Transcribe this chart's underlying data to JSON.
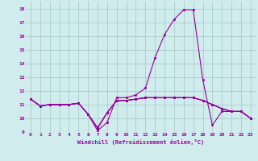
{
  "hours": [
    0,
    1,
    2,
    3,
    4,
    5,
    6,
    7,
    8,
    9,
    10,
    11,
    12,
    13,
    14,
    15,
    16,
    17,
    18,
    19,
    20,
    21,
    22,
    23
  ],
  "line1": [
    11.4,
    10.9,
    11.0,
    11.0,
    11.0,
    11.1,
    10.3,
    9.1,
    9.7,
    11.5,
    11.5,
    11.7,
    12.2,
    14.4,
    16.1,
    17.2,
    17.9,
    17.9,
    12.8,
    9.5,
    10.5,
    10.5,
    10.5,
    10.0
  ],
  "line2": [
    11.4,
    10.9,
    11.0,
    11.0,
    11.0,
    11.1,
    10.3,
    9.3,
    10.4,
    11.3,
    11.3,
    11.4,
    11.5,
    11.5,
    11.5,
    11.5,
    11.5,
    11.5,
    11.3,
    11.0,
    10.7,
    10.5,
    10.5,
    10.0
  ],
  "line3": [
    11.4,
    10.9,
    11.0,
    11.0,
    11.0,
    11.1,
    10.3,
    9.3,
    10.4,
    11.3,
    11.3,
    11.4,
    11.5,
    11.5,
    11.5,
    11.5,
    11.5,
    11.5,
    11.3,
    11.0,
    10.7,
    10.5,
    10.5,
    10.0
  ],
  "line4": [
    11.4,
    10.9,
    11.0,
    11.0,
    11.0,
    11.1,
    10.3,
    9.3,
    10.4,
    11.3,
    11.3,
    11.4,
    11.5,
    11.5,
    11.5,
    11.5,
    11.5,
    11.5,
    11.3,
    11.0,
    10.7,
    10.5,
    10.5,
    10.0
  ],
  "color": "#990099",
  "bg_color": "#d0ecec",
  "grid_color": "#aacccc",
  "xlabel": "Windchill (Refroidissement éolien,°C)",
  "ylim": [
    9,
    18.5
  ],
  "xlim": [
    -0.5,
    23.5
  ],
  "yticks": [
    9,
    10,
    11,
    12,
    13,
    14,
    15,
    16,
    17,
    18
  ],
  "xtick_labels": [
    "0",
    "1",
    "2",
    "3",
    "4",
    "5",
    "6",
    "7",
    "8",
    "9",
    "10",
    "11",
    "12",
    "13",
    "14",
    "15",
    "16",
    "17",
    "18",
    "19",
    "20",
    "21",
    "22",
    "23"
  ]
}
